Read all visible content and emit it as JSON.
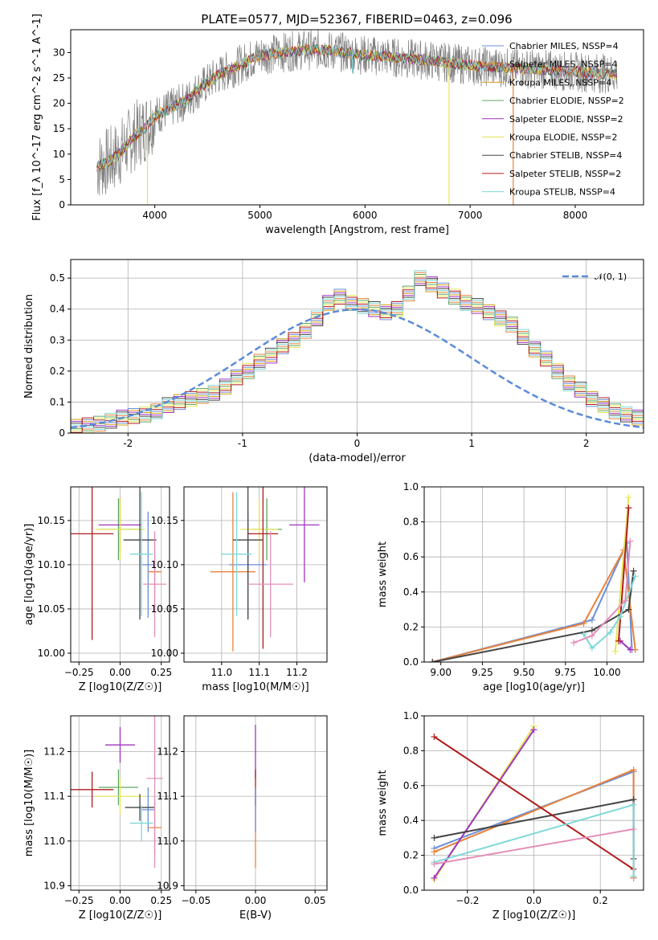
{
  "figure": {
    "title": "PLATE=0577, MJD=52367, FIBERID=0463, z=0.096"
  },
  "legend_entries": [
    {
      "label": "Chabrier MILES, NSSP=4",
      "color": "#6a8fd8"
    },
    {
      "label": "Salpeter MILES, NSSP=4",
      "color": "#e8823c"
    },
    {
      "label": "Kroupa MILES, NSSP=4",
      "color": "#d4a017"
    },
    {
      "label": "Chabrier ELODIE, NSSP=2",
      "color": "#5fa65f"
    },
    {
      "label": "Salpeter ELODIE, NSSP=2",
      "color": "#a033c0"
    },
    {
      "label": "Kroupa ELODIE, NSSP=2",
      "color": "#e6e657"
    },
    {
      "label": "Chabrier STELIB, NSSP=4",
      "color": "#444444"
    },
    {
      "label": "Salpeter STELIB, NSSP=2",
      "color": "#b01c1c"
    },
    {
      "label": "Kroupa STELIB, NSSP=4",
      "color": "#7fd8d8"
    }
  ],
  "chart_data": [
    {
      "id": "spectrum",
      "type": "line",
      "title": "PLATE=0577, MJD=52367, FIBERID=0463, z=0.096",
      "xlabel": "wavelength [Angstrom, rest frame]",
      "ylabel": "Flux [f_λ 10^-17 erg cm^-2 s^-1 A^-1]",
      "xlim": [
        3200,
        8650
      ],
      "ylim": [
        0,
        34.5
      ],
      "xticks": [
        4000,
        5000,
        6000,
        7000,
        8000
      ],
      "yticks": [
        0,
        5,
        10,
        15,
        20,
        25,
        30
      ],
      "continuum": {
        "x": [
          3450,
          3600,
          3700,
          3800,
          3900,
          4000,
          4100,
          4200,
          4300,
          4400,
          4500,
          4600,
          4700,
          4800,
          4900,
          5000,
          5200,
          5400,
          5600,
          5800,
          6000,
          6200,
          6400,
          6600,
          6800,
          7000,
          7200,
          7400,
          7600,
          7800,
          8000,
          8200,
          8400
        ],
        "y": [
          7.5,
          9,
          11,
          13.5,
          15,
          17.5,
          18.5,
          19.5,
          20.5,
          22.5,
          24,
          25.5,
          26.5,
          27.5,
          28.5,
          29.5,
          30,
          30.5,
          30.5,
          30,
          29.5,
          29.2,
          28.8,
          28.5,
          28,
          27.5,
          27.2,
          27,
          26.8,
          26.5,
          26.2,
          26,
          25.8
        ]
      },
      "spikes": [
        {
          "x": 3930,
          "y": 0,
          "color": "#e6e657"
        },
        {
          "x": 6800,
          "y": 0,
          "color": "#e6e657"
        },
        {
          "x": 7410,
          "y": 0,
          "color": "#e8823c"
        },
        {
          "x": 5880,
          "y": 26,
          "color": "#7fd8d8"
        }
      ]
    },
    {
      "id": "residuals",
      "type": "bar",
      "xlabel": "(data-model)/error",
      "ylabel": "Normed distribution",
      "xlim": [
        -2.5,
        2.5
      ],
      "ylim": [
        0,
        0.56
      ],
      "xticks": [
        -2,
        -1,
        0,
        1,
        2
      ],
      "yticks": [
        0.0,
        0.1,
        0.2,
        0.3,
        0.4,
        0.5
      ],
      "bin_edges_start": -2.5,
      "bin_width": 0.1,
      "reference_curve": {
        "label": "𝒩(0, 1)",
        "mean": 0,
        "sigma": 1,
        "color": "#5b8bd8"
      },
      "histogram": [
        0.02,
        0.025,
        0.03,
        0.04,
        0.05,
        0.055,
        0.06,
        0.07,
        0.09,
        0.1,
        0.11,
        0.12,
        0.13,
        0.15,
        0.18,
        0.2,
        0.23,
        0.25,
        0.28,
        0.3,
        0.33,
        0.37,
        0.42,
        0.44,
        0.42,
        0.41,
        0.4,
        0.39,
        0.4,
        0.45,
        0.5,
        0.48,
        0.46,
        0.44,
        0.42,
        0.41,
        0.39,
        0.37,
        0.35,
        0.31,
        0.27,
        0.24,
        0.2,
        0.16,
        0.14,
        0.11,
        0.09,
        0.07,
        0.06,
        0.05,
        0.035,
        0.02
      ]
    },
    {
      "id": "age-vs-Z",
      "type": "scatter",
      "xlabel": "Z [log10(Z/Z☉)]",
      "ylabel": "age [log10(age/yr)]",
      "xlim": [
        -0.3,
        0.3
      ],
      "ylim": [
        9.99,
        10.188
      ],
      "xticks": [
        -0.25,
        0.0,
        0.25
      ],
      "xticklabels": [
        "−0.25",
        "0.00",
        "0.25"
      ],
      "yticks": [
        10.0,
        10.05,
        10.1,
        10.15
      ],
      "yticklabels": [
        "10.00",
        "10.05",
        "10.10",
        "10.15"
      ],
      "points": [
        {
          "x": 0.17,
          "y": 10.1,
          "xerr": 0.04,
          "yerr": 0.06,
          "color": "#6a8fd8"
        },
        {
          "x": 0.21,
          "y": 10.092,
          "xerr": 0.04,
          "yerr": 0.04,
          "color": "#e8823c"
        },
        {
          "x": -0.01,
          "y": 10.14,
          "xerr": 0.12,
          "yerr": 0.035,
          "color": "#5fa65f"
        },
        {
          "x": 0.0,
          "y": 10.145,
          "xerr": 0.13,
          "yerr": 0.03,
          "color": "#a033c0"
        },
        {
          "x": 0.0,
          "y": 10.14,
          "xerr": 0.15,
          "yerr": 0.035,
          "color": "#e6e657"
        },
        {
          "x": 0.12,
          "y": 10.128,
          "xerr": 0.1,
          "yerr": 0.09,
          "color": "#444444"
        },
        {
          "x": -0.17,
          "y": 10.135,
          "xerr": 0.13,
          "yerr": 0.12,
          "color": "#b01c1c"
        },
        {
          "x": 0.13,
          "y": 10.112,
          "xerr": 0.07,
          "yerr": 0.07,
          "color": "#7fd8d8"
        },
        {
          "x": 0.21,
          "y": 10.078,
          "xerr": 0.07,
          "yerr": 0.06,
          "color": "#e38fb8"
        }
      ]
    },
    {
      "id": "age-vs-mass",
      "type": "scatter",
      "xlabel": "mass [log10(M/M☉)]",
      "ylabel": "",
      "xlim": [
        10.9,
        11.28
      ],
      "ylim": [
        9.99,
        10.188
      ],
      "xticks": [
        11.0,
        11.1,
        11.2
      ],
      "xticklabels": [
        "11.0",
        "11.1",
        "11.2"
      ],
      "yticks": [
        10.0,
        10.05,
        10.1,
        10.15
      ],
      "yticklabels": [
        "10.00",
        "10.05",
        "10.10",
        "10.15"
      ],
      "points": [
        {
          "x": 11.07,
          "y": 10.1,
          "xerr": 0.05,
          "yerr": 0.06,
          "color": "#6a8fd8"
        },
        {
          "x": 11.03,
          "y": 10.092,
          "xerr": 0.06,
          "yerr": 0.09,
          "color": "#e8823c"
        },
        {
          "x": 11.12,
          "y": 10.14,
          "xerr": 0.04,
          "yerr": 0.035,
          "color": "#5fa65f"
        },
        {
          "x": 11.22,
          "y": 10.145,
          "xerr": 0.04,
          "yerr": 0.065,
          "color": "#a033c0"
        },
        {
          "x": 11.1,
          "y": 10.14,
          "xerr": 0.05,
          "yerr": 0.035,
          "color": "#e6e657"
        },
        {
          "x": 11.07,
          "y": 10.128,
          "xerr": 0.04,
          "yerr": 0.09,
          "color": "#444444"
        },
        {
          "x": 11.11,
          "y": 10.135,
          "xerr": 0.04,
          "yerr": 0.13,
          "color": "#b01c1c"
        },
        {
          "x": 11.04,
          "y": 10.112,
          "xerr": 0.04,
          "yerr": 0.07,
          "color": "#7fd8d8"
        },
        {
          "x": 11.13,
          "y": 10.078,
          "xerr": 0.06,
          "yerr": 0.06,
          "color": "#e38fb8"
        }
      ]
    },
    {
      "id": "weight-vs-age",
      "type": "line",
      "xlabel": "age [log10(age/yr)]",
      "ylabel": "mass weight",
      "xlim": [
        8.9,
        10.22
      ],
      "ylim": [
        0,
        1.0
      ],
      "xticks": [
        9.0,
        9.25,
        9.5,
        9.75,
        10.0
      ],
      "xticklabels": [
        "9.00",
        "9.25",
        "9.50",
        "9.75",
        "10.00"
      ],
      "yticks": [
        0.0,
        0.2,
        0.4,
        0.6,
        0.8,
        1.0
      ],
      "yticklabels": [
        "0.0",
        "0.2",
        "0.4",
        "0.6",
        "0.8",
        "1.0"
      ],
      "series": [
        {
          "color": "#6a8fd8",
          "x": [
            8.95,
            9.91,
            10.12,
            10.15
          ],
          "y": [
            0.0,
            0.24,
            0.68,
            0.07
          ]
        },
        {
          "color": "#e8823c",
          "x": [
            8.95,
            9.86,
            10.1,
            10.17
          ],
          "y": [
            0.0,
            0.22,
            0.64,
            0.07
          ]
        },
        {
          "color": "#e6e657",
          "x": [
            10.05,
            10.13
          ],
          "y": [
            0.06,
            0.94
          ]
        },
        {
          "color": "#a033c0",
          "x": [
            10.08,
            10.14
          ],
          "y": [
            0.12,
            0.07
          ]
        },
        {
          "color": "#444444",
          "x": [
            8.95,
            9.91,
            10.13,
            10.16
          ],
          "y": [
            0.0,
            0.18,
            0.3,
            0.52
          ]
        },
        {
          "color": "#b01c1c",
          "x": [
            10.07,
            10.13
          ],
          "y": [
            0.12,
            0.88
          ]
        },
        {
          "color": "#7fd8d8",
          "x": [
            9.86,
            9.91,
            10.02,
            10.08,
            10.17
          ],
          "y": [
            0.16,
            0.08,
            0.17,
            0.26,
            0.49
          ]
        },
        {
          "color": "#e38fb8",
          "x": [
            9.8,
            9.91,
            10.11,
            10.14
          ],
          "y": [
            0.11,
            0.15,
            0.35,
            0.69
          ]
        }
      ]
    },
    {
      "id": "mass-vs-Z",
      "type": "scatter",
      "xlabel": "Z [log10(Z/Z☉)]",
      "ylabel": "mass [log10(M/M☉)]",
      "xlim": [
        -0.3,
        0.3
      ],
      "ylim": [
        10.89,
        11.28
      ],
      "xticks": [
        -0.25,
        0.0,
        0.25
      ],
      "xticklabels": [
        "−0.25",
        "0.00",
        "0.25"
      ],
      "yticks": [
        10.9,
        11.0,
        11.1,
        11.2
      ],
      "yticklabels": [
        "10.9",
        "11.0",
        "11.1",
        "11.2"
      ],
      "points": [
        {
          "x": 0.17,
          "y": 11.07,
          "xerr": 0.04,
          "yerr": 0.05,
          "color": "#6a8fd8"
        },
        {
          "x": 0.21,
          "y": 11.03,
          "xerr": 0.04,
          "yerr": 0.06,
          "color": "#e8823c"
        },
        {
          "x": -0.01,
          "y": 11.12,
          "xerr": 0.12,
          "yerr": 0.04,
          "color": "#5fa65f"
        },
        {
          "x": 0.0,
          "y": 11.215,
          "xerr": 0.09,
          "yerr": 0.04,
          "color": "#a033c0"
        },
        {
          "x": 0.0,
          "y": 11.1,
          "xerr": 0.15,
          "yerr": 0.04,
          "color": "#e6e657"
        },
        {
          "x": 0.12,
          "y": 11.075,
          "xerr": 0.09,
          "yerr": 0.03,
          "color": "#444444"
        },
        {
          "x": -0.17,
          "y": 11.115,
          "xerr": 0.13,
          "yerr": 0.04,
          "color": "#b01c1c"
        },
        {
          "x": 0.13,
          "y": 11.04,
          "xerr": 0.07,
          "yerr": 0.04,
          "color": "#7fd8d8"
        },
        {
          "x": 0.21,
          "y": 11.14,
          "xerr": 0.05,
          "yerr": 0.2,
          "color": "#e38fb8"
        }
      ]
    },
    {
      "id": "mass-vs-ebv",
      "type": "scatter",
      "xlabel": "E(B-V)",
      "ylabel": "",
      "xlim": [
        -0.06,
        0.06
      ],
      "ylim": [
        10.89,
        11.28
      ],
      "xticks": [
        -0.05,
        0.0,
        0.05
      ],
      "xticklabels": [
        "−0.05",
        "0.00",
        "0.05"
      ],
      "yticks": [
        10.9,
        11.0,
        11.1,
        11.2
      ],
      "yticklabels": [
        "10.9",
        "11.0",
        "11.1",
        "11.2"
      ],
      "points": [
        {
          "x": 0.0,
          "y": 11.2,
          "xerr": 0,
          "yerr": 0.06,
          "color": "#a033c0"
        },
        {
          "x": 0.0,
          "y": 11.12,
          "xerr": 0,
          "yerr": 0.04,
          "color": "#b01c1c"
        },
        {
          "x": 0.0,
          "y": 11.03,
          "xerr": 0,
          "yerr": 0.09,
          "color": "#e8823c"
        },
        {
          "x": 0.0,
          "y": 11.07,
          "xerr": 0,
          "yerr": 0.05,
          "color": "#6a8fd8"
        }
      ]
    },
    {
      "id": "weight-vs-Z",
      "type": "line",
      "xlabel": "Z [log10(Z/Z☉)]",
      "ylabel": "mass weight",
      "xlim": [
        -0.33,
        0.33
      ],
      "ylim": [
        0,
        1.0
      ],
      "xticks": [
        -0.2,
        0.0,
        0.2
      ],
      "xticklabels": [
        "−0.2",
        "0.0",
        "0.2"
      ],
      "yticks": [
        0.0,
        0.2,
        0.4,
        0.6,
        0.8,
        1.0
      ],
      "yticklabels": [
        "0.0",
        "0.2",
        "0.4",
        "0.6",
        "0.8",
        "1.0"
      ],
      "series": [
        {
          "color": "#6a8fd8",
          "x": [
            -0.3,
            0.3,
            0.3
          ],
          "y": [
            0.24,
            0.68,
            0.07
          ]
        },
        {
          "color": "#e8823c",
          "x": [
            -0.3,
            0.3,
            0.3
          ],
          "y": [
            0.22,
            0.69,
            0.07
          ]
        },
        {
          "color": "#e6e657",
          "x": [
            -0.3,
            0.0
          ],
          "y": [
            0.06,
            0.94
          ]
        },
        {
          "color": "#a033c0",
          "x": [
            -0.3,
            0.0
          ],
          "y": [
            0.07,
            0.92
          ]
        },
        {
          "color": "#444444",
          "x": [
            -0.3,
            0.3,
            0.3
          ],
          "y": [
            0.3,
            0.52,
            0.18
          ]
        },
        {
          "color": "#b01c1c",
          "x": [
            -0.3,
            0.3
          ],
          "y": [
            0.88,
            0.12
          ]
        },
        {
          "color": "#7fd8d8",
          "x": [
            -0.3,
            0.3,
            0.3
          ],
          "y": [
            0.16,
            0.49,
            0.08
          ]
        },
        {
          "color": "#e38fb8",
          "x": [
            -0.3,
            0.3
          ],
          "y": [
            0.15,
            0.35
          ]
        }
      ]
    }
  ]
}
